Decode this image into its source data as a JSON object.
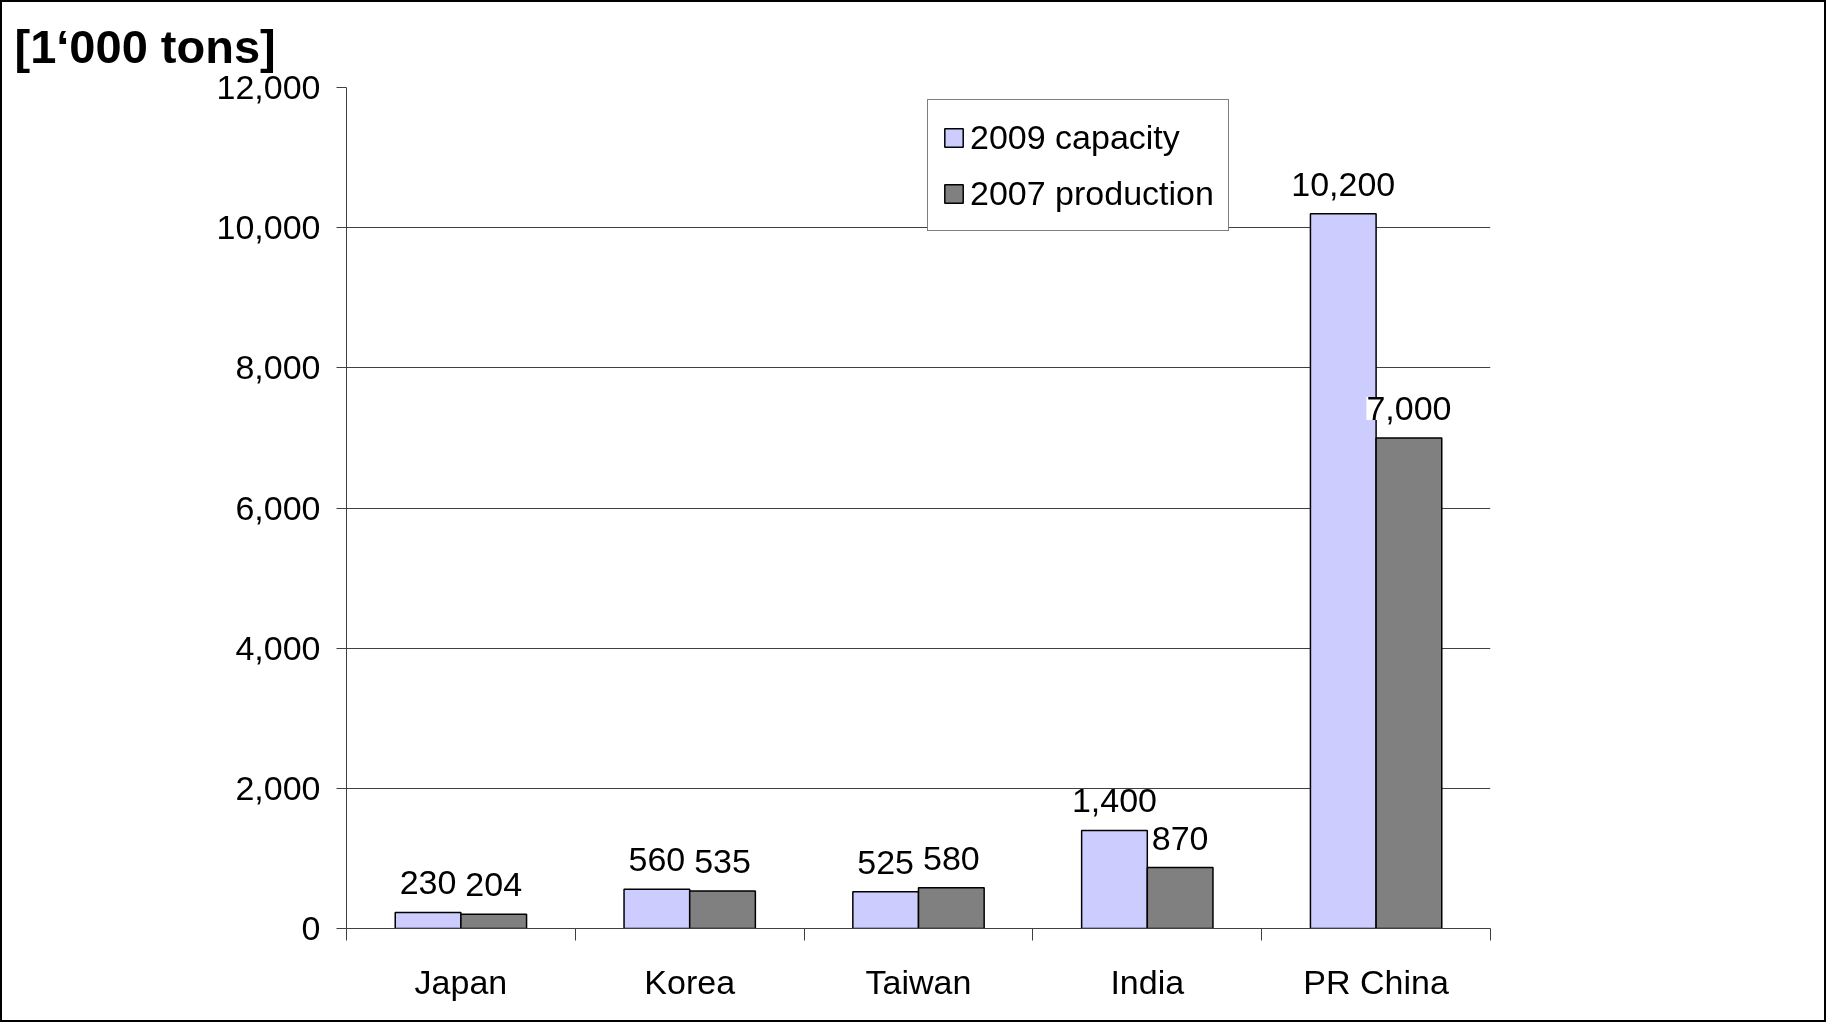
{
  "chart_data": {
    "type": "bar",
    "ylabel": "[1‘000 tons]",
    "categories": [
      "Japan",
      "Korea",
      "Taiwan",
      "India",
      "PR China"
    ],
    "series": [
      {
        "name": "2009 capacity",
        "color": "#ccccff",
        "values": [
          230,
          560,
          525,
          1400,
          10200
        ],
        "value_labels": [
          "230",
          "560",
          "525",
          "1,400",
          "10,200"
        ]
      },
      {
        "name": "2007 production",
        "color": "#808080",
        "values": [
          204,
          535,
          580,
          870,
          7000
        ],
        "value_labels": [
          "204",
          "535",
          "580",
          "870",
          "7,000"
        ]
      }
    ],
    "ylim": [
      0,
      12000
    ],
    "yticks": [
      0,
      {
        "value": 2000,
        "label": "2,000"
      },
      {
        "value": 4000,
        "label": "4,000"
      },
      {
        "value": 6000,
        "label": "6,000"
      },
      {
        "value": 8000,
        "label": "8,000"
      },
      {
        "value": 10000,
        "label": "10,000"
      },
      {
        "value": 12000,
        "label": "12,000"
      }
    ],
    "grid": "y",
    "legend": "top"
  }
}
